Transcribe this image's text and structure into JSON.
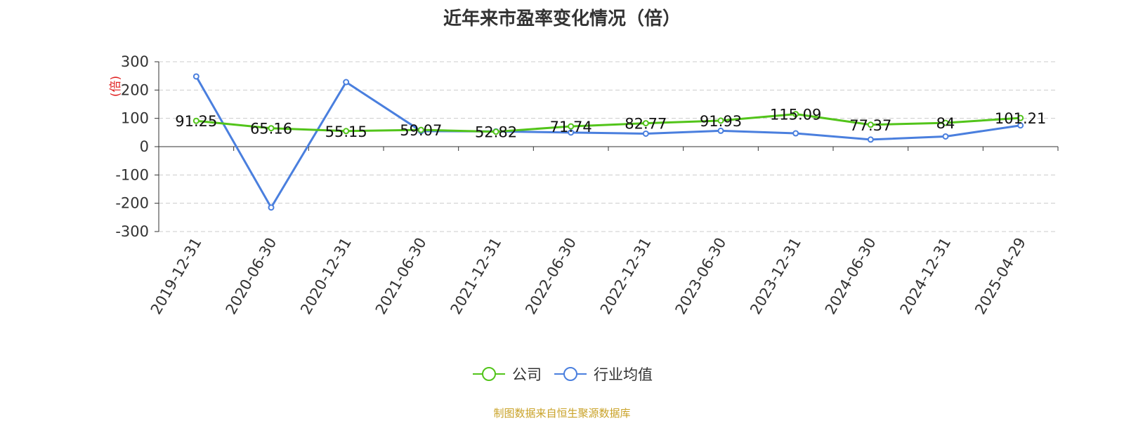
{
  "chart_data": {
    "type": "line",
    "title": "近年来市盈率变化情况（倍）",
    "ylabel": "(倍)",
    "ylim": [
      -300,
      300
    ],
    "yticks": [
      300,
      200,
      100,
      0,
      -100,
      -200,
      -300
    ],
    "grid": true,
    "legend_position": "bottom-center",
    "categories": [
      "2019-12-31",
      "2020-06-30",
      "2020-12-31",
      "2021-06-30",
      "2021-12-31",
      "2022-06-30",
      "2022-12-31",
      "2023-06-30",
      "2023-12-31",
      "2024-06-30",
      "2024-12-31",
      "2025-04-29"
    ],
    "series": [
      {
        "name": "公司",
        "color": "#52c41a",
        "values": [
          91.25,
          65.16,
          55.15,
          59.07,
          52.82,
          71.74,
          82.77,
          91.93,
          115.09,
          77.37,
          84,
          101.21
        ],
        "labels": [
          "91.25",
          "65.16",
          "55.15",
          "59.07",
          "52.82",
          "71.74",
          "82.77",
          "91.93",
          "115.09",
          "77.37",
          "84",
          "101.21"
        ]
      },
      {
        "name": "行业均值",
        "color": "#4a7fde",
        "values": [
          248,
          -215,
          228,
          55,
          54,
          50,
          46,
          56,
          47,
          25,
          36,
          75
        ]
      }
    ]
  },
  "footer": {
    "source": "制图数据来自恒生聚源数据库"
  }
}
